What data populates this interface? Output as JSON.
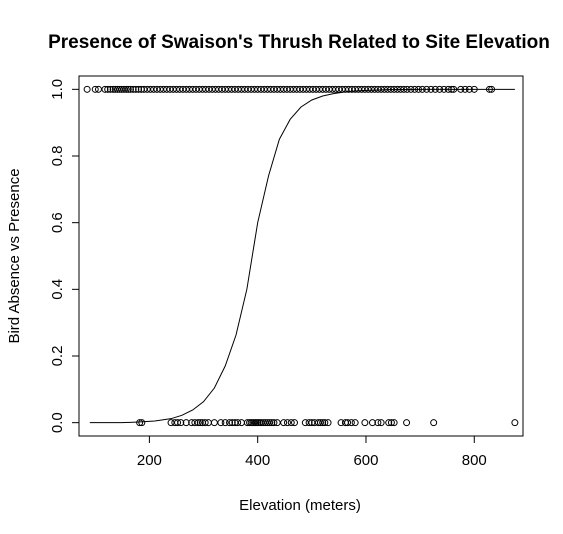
{
  "chart_data": {
    "type": "scatter",
    "title": "Presence of Swaison's Thrush Related to Site Elevation",
    "xlabel": "Elevation (meters)",
    "ylabel": "Bird Absence vs Presence",
    "xlim": [
      70,
      890
    ],
    "ylim": [
      -0.04,
      1.04
    ],
    "x_ticks": [
      200,
      400,
      600,
      800
    ],
    "x_tick_labels": [
      "200",
      "400",
      "600",
      "800"
    ],
    "y_ticks": [
      0.0,
      0.2,
      0.4,
      0.6,
      0.8,
      1.0
    ],
    "y_tick_labels": [
      "0.0",
      "0.2",
      "0.4",
      "0.6",
      "0.8",
      "1.0"
    ],
    "grid": false,
    "legend": "none",
    "marker": "open-circle",
    "series": [
      {
        "values": [
          {
            "x": 182,
            "y": 0
          },
          {
            "x": 186,
            "y": 0
          },
          {
            "x": 240,
            "y": 0
          },
          {
            "x": 247,
            "y": 0
          },
          {
            "x": 252,
            "y": 0
          },
          {
            "x": 258,
            "y": 0
          },
          {
            "x": 268,
            "y": 0
          },
          {
            "x": 278,
            "y": 0
          },
          {
            "x": 284,
            "y": 0
          },
          {
            "x": 290,
            "y": 0
          },
          {
            "x": 294,
            "y": 0
          },
          {
            "x": 298,
            "y": 0
          },
          {
            "x": 303,
            "y": 0
          },
          {
            "x": 309,
            "y": 0
          },
          {
            "x": 320,
            "y": 0
          },
          {
            "x": 332,
            "y": 0
          },
          {
            "x": 340,
            "y": 0
          },
          {
            "x": 348,
            "y": 0
          },
          {
            "x": 353,
            "y": 0
          },
          {
            "x": 358,
            "y": 0
          },
          {
            "x": 363,
            "y": 0
          },
          {
            "x": 370,
            "y": 0
          },
          {
            "x": 381,
            "y": 0
          },
          {
            "x": 385,
            "y": 0
          },
          {
            "x": 388,
            "y": 0
          },
          {
            "x": 391,
            "y": 0
          },
          {
            "x": 394,
            "y": 0
          },
          {
            "x": 397,
            "y": 0
          },
          {
            "x": 400,
            "y": 0
          },
          {
            "x": 403,
            "y": 0
          },
          {
            "x": 406,
            "y": 0
          },
          {
            "x": 410,
            "y": 0
          },
          {
            "x": 414,
            "y": 0
          },
          {
            "x": 418,
            "y": 0
          },
          {
            "x": 422,
            "y": 0
          },
          {
            "x": 426,
            "y": 0
          },
          {
            "x": 430,
            "y": 0
          },
          {
            "x": 436,
            "y": 0
          },
          {
            "x": 448,
            "y": 0
          },
          {
            "x": 455,
            "y": 0
          },
          {
            "x": 462,
            "y": 0
          },
          {
            "x": 468,
            "y": 0
          },
          {
            "x": 488,
            "y": 0
          },
          {
            "x": 495,
            "y": 0
          },
          {
            "x": 500,
            "y": 0
          },
          {
            "x": 505,
            "y": 0
          },
          {
            "x": 512,
            "y": 0
          },
          {
            "x": 516,
            "y": 0
          },
          {
            "x": 520,
            "y": 0
          },
          {
            "x": 524,
            "y": 0
          },
          {
            "x": 530,
            "y": 0
          },
          {
            "x": 554,
            "y": 0
          },
          {
            "x": 562,
            "y": 0
          },
          {
            "x": 566,
            "y": 0
          },
          {
            "x": 573,
            "y": 0
          },
          {
            "x": 580,
            "y": 0
          },
          {
            "x": 598,
            "y": 0
          },
          {
            "x": 612,
            "y": 0
          },
          {
            "x": 622,
            "y": 0
          },
          {
            "x": 628,
            "y": 0
          },
          {
            "x": 642,
            "y": 0
          },
          {
            "x": 647,
            "y": 0
          },
          {
            "x": 652,
            "y": 0
          },
          {
            "x": 675,
            "y": 0
          },
          {
            "x": 725,
            "y": 0
          },
          {
            "x": 875,
            "y": 0
          },
          {
            "x": 85,
            "y": 1
          },
          {
            "x": 100,
            "y": 1
          },
          {
            "x": 106,
            "y": 1
          },
          {
            "x": 118,
            "y": 1
          },
          {
            "x": 123,
            "y": 1
          },
          {
            "x": 128,
            "y": 1
          },
          {
            "x": 133,
            "y": 1
          },
          {
            "x": 137,
            "y": 1
          },
          {
            "x": 141,
            "y": 1
          },
          {
            "x": 145,
            "y": 1
          },
          {
            "x": 149,
            "y": 1
          },
          {
            "x": 153,
            "y": 1
          },
          {
            "x": 157,
            "y": 1
          },
          {
            "x": 161,
            "y": 1
          },
          {
            "x": 165,
            "y": 1
          },
          {
            "x": 170,
            "y": 1
          },
          {
            "x": 175,
            "y": 1
          },
          {
            "x": 180,
            "y": 1
          },
          {
            "x": 185,
            "y": 1
          },
          {
            "x": 190,
            "y": 1
          },
          {
            "x": 196,
            "y": 1
          },
          {
            "x": 202,
            "y": 1
          },
          {
            "x": 208,
            "y": 1
          },
          {
            "x": 214,
            "y": 1
          },
          {
            "x": 220,
            "y": 1
          },
          {
            "x": 226,
            "y": 1
          },
          {
            "x": 232,
            "y": 1
          },
          {
            "x": 238,
            "y": 1
          },
          {
            "x": 244,
            "y": 1
          },
          {
            "x": 250,
            "y": 1
          },
          {
            "x": 256,
            "y": 1
          },
          {
            "x": 262,
            "y": 1
          },
          {
            "x": 268,
            "y": 1
          },
          {
            "x": 274,
            "y": 1
          },
          {
            "x": 280,
            "y": 1
          },
          {
            "x": 286,
            "y": 1
          },
          {
            "x": 292,
            "y": 1
          },
          {
            "x": 298,
            "y": 1
          },
          {
            "x": 304,
            "y": 1
          },
          {
            "x": 310,
            "y": 1
          },
          {
            "x": 316,
            "y": 1
          },
          {
            "x": 322,
            "y": 1
          },
          {
            "x": 328,
            "y": 1
          },
          {
            "x": 334,
            "y": 1
          },
          {
            "x": 340,
            "y": 1
          },
          {
            "x": 346,
            "y": 1
          },
          {
            "x": 352,
            "y": 1
          },
          {
            "x": 358,
            "y": 1
          },
          {
            "x": 364,
            "y": 1
          },
          {
            "x": 370,
            "y": 1
          },
          {
            "x": 376,
            "y": 1
          },
          {
            "x": 382,
            "y": 1
          },
          {
            "x": 388,
            "y": 1
          },
          {
            "x": 394,
            "y": 1
          },
          {
            "x": 400,
            "y": 1
          },
          {
            "x": 406,
            "y": 1
          },
          {
            "x": 412,
            "y": 1
          },
          {
            "x": 418,
            "y": 1
          },
          {
            "x": 424,
            "y": 1
          },
          {
            "x": 430,
            "y": 1
          },
          {
            "x": 436,
            "y": 1
          },
          {
            "x": 442,
            "y": 1
          },
          {
            "x": 448,
            "y": 1
          },
          {
            "x": 454,
            "y": 1
          },
          {
            "x": 460,
            "y": 1
          },
          {
            "x": 466,
            "y": 1
          },
          {
            "x": 472,
            "y": 1
          },
          {
            "x": 478,
            "y": 1
          },
          {
            "x": 484,
            "y": 1
          },
          {
            "x": 490,
            "y": 1
          },
          {
            "x": 496,
            "y": 1
          },
          {
            "x": 502,
            "y": 1
          },
          {
            "x": 508,
            "y": 1
          },
          {
            "x": 514,
            "y": 1
          },
          {
            "x": 520,
            "y": 1
          },
          {
            "x": 526,
            "y": 1
          },
          {
            "x": 532,
            "y": 1
          },
          {
            "x": 538,
            "y": 1
          },
          {
            "x": 544,
            "y": 1
          },
          {
            "x": 550,
            "y": 1
          },
          {
            "x": 556,
            "y": 1
          },
          {
            "x": 562,
            "y": 1
          },
          {
            "x": 568,
            "y": 1
          },
          {
            "x": 574,
            "y": 1
          },
          {
            "x": 580,
            "y": 1
          },
          {
            "x": 586,
            "y": 1
          },
          {
            "x": 592,
            "y": 1
          },
          {
            "x": 598,
            "y": 1
          },
          {
            "x": 604,
            "y": 1
          },
          {
            "x": 610,
            "y": 1
          },
          {
            "x": 616,
            "y": 1
          },
          {
            "x": 622,
            "y": 1
          },
          {
            "x": 628,
            "y": 1
          },
          {
            "x": 634,
            "y": 1
          },
          {
            "x": 640,
            "y": 1
          },
          {
            "x": 646,
            "y": 1
          },
          {
            "x": 652,
            "y": 1
          },
          {
            "x": 658,
            "y": 1
          },
          {
            "x": 664,
            "y": 1
          },
          {
            "x": 670,
            "y": 1
          },
          {
            "x": 676,
            "y": 1
          },
          {
            "x": 683,
            "y": 1
          },
          {
            "x": 690,
            "y": 1
          },
          {
            "x": 697,
            "y": 1
          },
          {
            "x": 704,
            "y": 1
          },
          {
            "x": 712,
            "y": 1
          },
          {
            "x": 720,
            "y": 1
          },
          {
            "x": 728,
            "y": 1
          },
          {
            "x": 736,
            "y": 1
          },
          {
            "x": 744,
            "y": 1
          },
          {
            "x": 752,
            "y": 1
          },
          {
            "x": 758,
            "y": 1
          },
          {
            "x": 762,
            "y": 1
          },
          {
            "x": 775,
            "y": 1
          },
          {
            "x": 783,
            "y": 1
          },
          {
            "x": 791,
            "y": 1
          },
          {
            "x": 800,
            "y": 1
          },
          {
            "x": 828,
            "y": 1
          },
          {
            "x": 832,
            "y": 1
          }
        ]
      }
    ],
    "fit_curve": {
      "type": "line",
      "x": [
        90,
        120,
        150,
        180,
        210,
        240,
        260,
        280,
        300,
        320,
        340,
        360,
        380,
        400,
        420,
        440,
        460,
        480,
        500,
        520,
        540,
        560,
        580,
        600,
        640,
        700,
        760,
        820,
        875
      ],
      "y": [
        0.0,
        0.0,
        0.0,
        0.002,
        0.005,
        0.012,
        0.022,
        0.038,
        0.063,
        0.104,
        0.17,
        0.263,
        0.4,
        0.6,
        0.74,
        0.85,
        0.91,
        0.947,
        0.968,
        0.98,
        0.987,
        0.992,
        0.995,
        0.997,
        0.999,
        1.0,
        1.0,
        1.0,
        1.0
      ]
    }
  }
}
